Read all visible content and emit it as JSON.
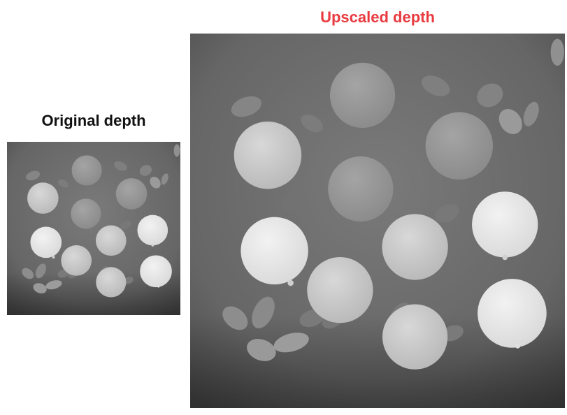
{
  "figure": {
    "original_title": "Original depth",
    "upscaled_title": "Upscaled depth",
    "title_colors": {
      "original": "#111111",
      "upscaled": "#e83a3f"
    }
  },
  "panels": [
    {
      "id": "original",
      "content": "low-resolution depth map of fruits and leaves"
    },
    {
      "id": "upscaled",
      "content": "upscaled depth map of fruits and leaves"
    }
  ]
}
